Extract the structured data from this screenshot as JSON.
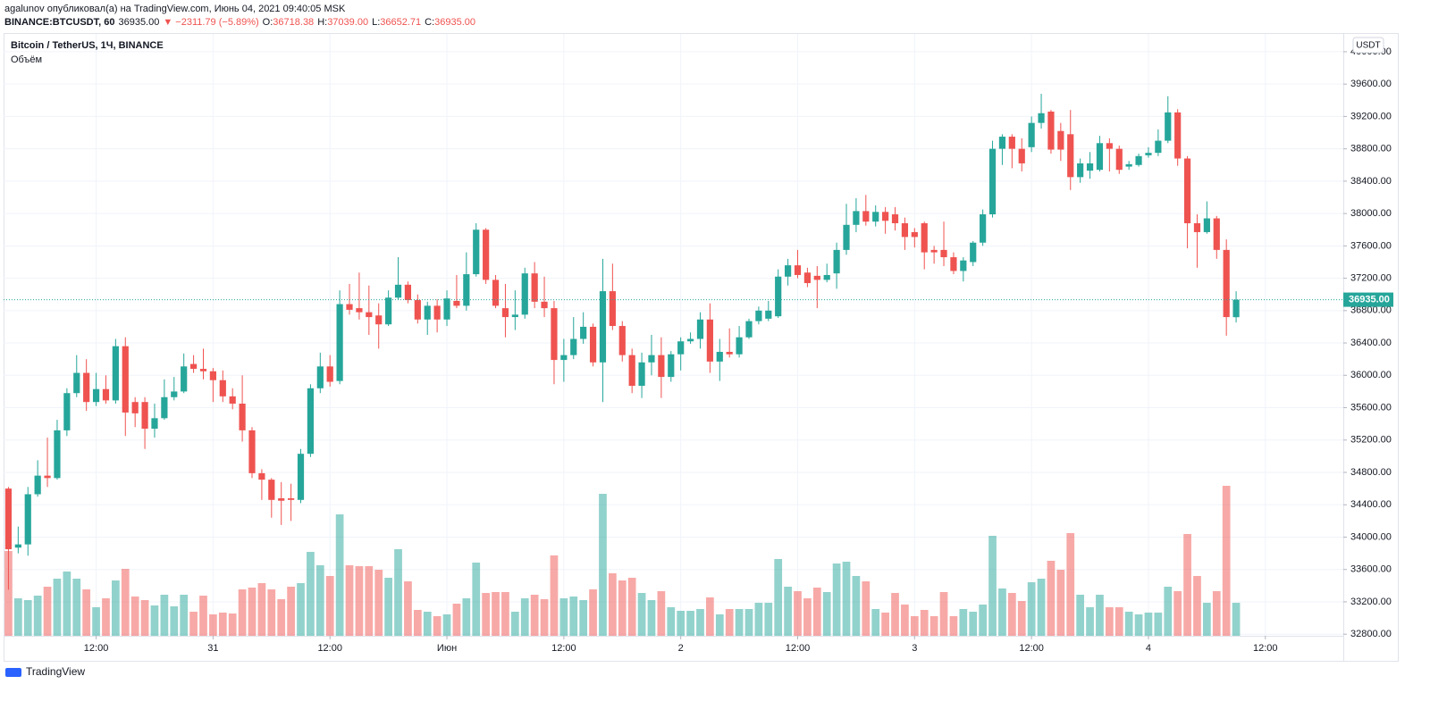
{
  "header": {
    "published": "agalunov опубликовал(а) на TradingView.com, Июнь 04, 2021 09:40:05 MSK",
    "symbol": "BINANCE:BTCUSDT, 60",
    "price": "36935.00",
    "change": "▼ −2311.79 (−5.89%)",
    "ohlc": [
      {
        "key": "O:",
        "value": "36718.38"
      },
      {
        "key": "H:",
        "value": "37039.00"
      },
      {
        "key": "L:",
        "value": "36652.71"
      },
      {
        "key": "C:",
        "value": "36935.00"
      }
    ]
  },
  "legend": {
    "instrument": "Bitcoin / TetherUS, 1Ч, BINANCE",
    "volume": "Объём"
  },
  "logo": "TradingView",
  "chart_data": {
    "type": "candlestick",
    "currency": "USDT",
    "last_price_label": "36935.00",
    "up_color": "#26a69a",
    "down_color": "#ef5350",
    "grid": true,
    "xlim": [
      -0.5,
      137
    ],
    "ylim": [
      32780,
      40220
    ],
    "volume_lim": [
      0,
      200
    ],
    "xticks": [
      {
        "value": 9,
        "label": "12:00"
      },
      {
        "value": 21,
        "label": "31"
      },
      {
        "value": 33,
        "label": "12:00"
      },
      {
        "value": 45,
        "label": "Июн"
      },
      {
        "value": 57,
        "label": "12:00"
      },
      {
        "value": 69,
        "label": "2"
      },
      {
        "value": 81,
        "label": "12:00"
      },
      {
        "value": 93,
        "label": "3"
      },
      {
        "value": 105,
        "label": "12:00"
      },
      {
        "value": 117,
        "label": "4"
      },
      {
        "value": 129,
        "label": "12:00"
      }
    ],
    "yticks": [
      {
        "value": 32800,
        "label": "32800.00"
      },
      {
        "value": 33200,
        "label": "33200.00"
      },
      {
        "value": 33600,
        "label": "33600.00"
      },
      {
        "value": 34000,
        "label": "34000.00"
      },
      {
        "value": 34400,
        "label": "34400.00"
      },
      {
        "value": 34800,
        "label": "34800.00"
      },
      {
        "value": 35200,
        "label": "35200.00"
      },
      {
        "value": 35600,
        "label": "35600.00"
      },
      {
        "value": 36000,
        "label": "36000.00"
      },
      {
        "value": 36400,
        "label": "36400.00"
      },
      {
        "value": 36800,
        "label": "36800.00"
      },
      {
        "value": 37200,
        "label": "37200.00"
      },
      {
        "value": 37600,
        "label": "37600.00"
      },
      {
        "value": 38000,
        "label": "38000.00"
      },
      {
        "value": 38400,
        "label": "38400.00"
      },
      {
        "value": 38800,
        "label": "38800.00"
      },
      {
        "value": 39200,
        "label": "39200.00"
      },
      {
        "value": 39600,
        "label": "39600.00"
      },
      {
        "value": 40000,
        "label": "40000.00"
      }
    ],
    "open": [
      34600,
      33870,
      33910,
      34530,
      34760,
      34730,
      35320,
      35780,
      36030,
      35670,
      35830,
      35690,
      36360,
      35670,
      35670,
      35340,
      35470,
      35730,
      35800,
      36140,
      36080,
      36050,
      35940,
      35740,
      35650,
      35320,
      34790,
      34710,
      34480,
      34480,
      34460,
      35030,
      35840,
      36110,
      35930,
      36880,
      36830,
      36780,
      36740,
      36630,
      36960,
      37120,
      36930,
      36690,
      36860,
      36690,
      36920,
      36860,
      37250,
      37800,
      37180,
      36830,
      36720,
      36750,
      37260,
      36910,
      36830,
      36190,
      36250,
      36450,
      36600,
      36160,
      37040,
      36610,
      36250,
      35870,
      36160,
      36250,
      35980,
      36260,
      36420,
      36450,
      36690,
      36170,
      36290,
      36260,
      36470,
      36670,
      36700,
      36730,
      37220,
      37360,
      37270,
      37230,
      37180,
      37260,
      37550,
      37860,
      38030,
      37900,
      38020,
      37990,
      37880,
      37770,
      37880,
      37550,
      37550,
      37460,
      37290,
      37400,
      37640,
      37990,
      38800,
      38950,
      38800,
      38820,
      39120,
      39260,
      39020,
      38980,
      38450,
      38530,
      38540,
      38870,
      38800,
      38580,
      38600,
      38720,
      38750,
      38900,
      39250,
      38680,
      37880,
      37770,
      37940,
      37550,
      36718.38
    ],
    "high": [
      34620,
      34130,
      34620,
      34950,
      35230,
      35450,
      35840,
      36250,
      36200,
      36030,
      36000,
      36450,
      36470,
      35730,
      35730,
      35650,
      35950,
      35980,
      36270,
      36250,
      36330,
      36090,
      36060,
      35840,
      36000,
      35360,
      34840,
      34730,
      34680,
      34660,
      35090,
      35890,
      36280,
      36250,
      37050,
      37130,
      37270,
      37110,
      36890,
      37050,
      37460,
      37160,
      37000,
      36910,
      36940,
      37050,
      37240,
      37520,
      37880,
      37820,
      37240,
      37130,
      37050,
      37330,
      37400,
      37220,
      36920,
      36450,
      36720,
      36780,
      36640,
      37440,
      37380,
      36670,
      36330,
      36280,
      36500,
      36470,
      36300,
      36470,
      36530,
      36780,
      36890,
      36450,
      36580,
      36610,
      36700,
      36850,
      36920,
      37310,
      37440,
      37550,
      37330,
      37350,
      37380,
      37640,
      38120,
      38190,
      38230,
      38100,
      38080,
      38080,
      37950,
      37820,
      37900,
      37600,
      37900,
      37520,
      37460,
      37660,
      38050,
      38900,
      38980,
      38980,
      38930,
      39200,
      39480,
      39280,
      39120,
      39280,
      38680,
      38760,
      38960,
      38930,
      38840,
      38650,
      38740,
      38820,
      39040,
      39450,
      39290,
      38710,
      37990,
      38150,
      37970,
      37680,
      37039
    ],
    "low": [
      33350,
      33800,
      33770,
      34500,
      34620,
      34710,
      35250,
      35730,
      35560,
      35620,
      35650,
      35650,
      35250,
      35360,
      35090,
      35230,
      35450,
      35690,
      35780,
      36030,
      35950,
      35670,
      35670,
      35580,
      35180,
      34730,
      34460,
      34240,
      34150,
      34200,
      34420,
      34990,
      35780,
      35860,
      35890,
      36750,
      36690,
      36500,
      36330,
      36610,
      36930,
      36890,
      36640,
      36500,
      36530,
      36610,
      36830,
      36800,
      37220,
      37130,
      36830,
      36470,
      36560,
      36700,
      36830,
      36720,
      35890,
      35920,
      36200,
      36390,
      36110,
      35670,
      36560,
      36170,
      35780,
      35720,
      36000,
      35720,
      35920,
      36060,
      36390,
      36330,
      36030,
      35930,
      36220,
      36220,
      36450,
      36630,
      36670,
      36710,
      37110,
      37200,
      37090,
      36830,
      37150,
      37070,
      37490,
      37770,
      37850,
      37840,
      37750,
      37790,
      37550,
      37580,
      37310,
      37380,
      37350,
      37250,
      37160,
      37350,
      37600,
      37950,
      38600,
      38560,
      38520,
      38760,
      39050,
      38740,
      38650,
      38290,
      38380,
      38430,
      38520,
      38520,
      38490,
      38540,
      38580,
      38690,
      38710,
      38870,
      38590,
      37570,
      37330,
      37750,
      37440,
      36490,
      36652.71
    ],
    "close": [
      33850,
      33910,
      34530,
      34760,
      34730,
      35320,
      35780,
      36030,
      35670,
      35830,
      35690,
      36360,
      35540,
      35530,
      35340,
      35470,
      35730,
      35800,
      36110,
      36080,
      36050,
      35940,
      35740,
      35650,
      35320,
      34790,
      34710,
      34460,
      34450,
      34460,
      35030,
      35840,
      36110,
      35920,
      36880,
      36810,
      36780,
      36720,
      36630,
      36960,
      37120,
      36930,
      36690,
      36860,
      36690,
      36950,
      36860,
      37250,
      37800,
      37180,
      36860,
      36720,
      36750,
      37260,
      36910,
      36830,
      36190,
      36250,
      36450,
      36600,
      36160,
      37040,
      36610,
      36250,
      35870,
      36160,
      36250,
      35980,
      36260,
      36420,
      36450,
      36690,
      36170,
      36290,
      36260,
      36470,
      36670,
      36800,
      36800,
      37220,
      37360,
      37240,
      37140,
      37180,
      37240,
      37550,
      37860,
      38030,
      37900,
      38020,
      37910,
      37880,
      37710,
      37710,
      37520,
      37520,
      37460,
      37290,
      37420,
      37640,
      37990,
      38800,
      38950,
      38800,
      38620,
      39120,
      39240,
      38790,
      38790,
      38450,
      38620,
      38620,
      38870,
      38800,
      38540,
      38610,
      38710,
      38750,
      38900,
      39250,
      38680,
      37880,
      37770,
      37940,
      37550,
      36720,
      36935
    ],
    "volume": [
      95,
      42,
      40,
      45,
      55,
      64,
      72,
      64,
      52,
      32,
      42,
      62,
      75,
      44,
      40,
      34,
      46,
      33,
      46,
      27,
      45,
      24,
      26,
      25,
      52,
      54,
      59,
      52,
      41,
      55,
      59,
      94,
      79,
      67,
      136,
      79,
      78,
      78,
      74,
      65,
      97,
      61,
      29,
      27,
      22,
      24,
      36,
      42,
      82,
      48,
      49,
      49,
      27,
      42,
      46,
      41,
      90,
      42,
      44,
      40,
      52,
      159,
      70,
      62,
      65,
      48,
      40,
      50,
      32,
      28,
      28,
      30,
      43,
      24,
      30,
      30,
      30,
      37,
      37,
      86,
      55,
      50,
      42,
      54,
      49,
      81,
      83,
      67,
      61,
      30,
      26,
      48,
      35,
      22,
      29,
      22,
      49,
      22,
      30,
      27,
      35,
      112,
      53,
      48,
      39,
      60,
      64,
      84,
      74,
      115,
      46,
      32,
      46,
      32,
      32,
      27,
      24,
      26,
      26,
      55,
      50,
      114,
      67,
      37,
      50,
      168,
      37
    ]
  }
}
